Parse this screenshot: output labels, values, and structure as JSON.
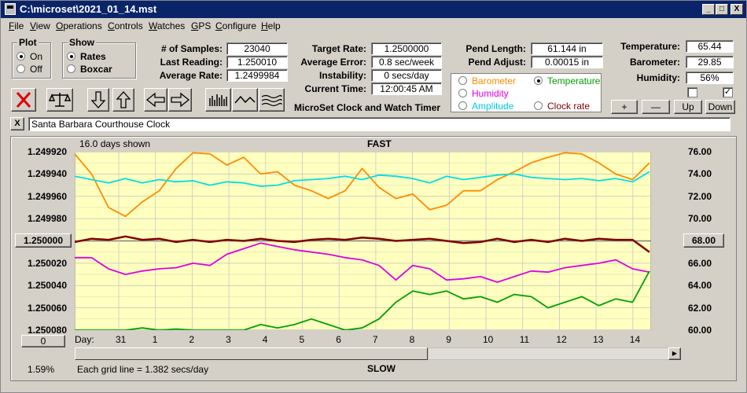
{
  "window": {
    "title": "C:\\microset\\2021_01_14.mst",
    "controls": [
      "_",
      "□",
      "X"
    ]
  },
  "menu": [
    "File",
    "View",
    "Operations",
    "Controls",
    "Watches",
    "GPS",
    "Configure",
    "Help"
  ],
  "plot_group": {
    "title": "Plot",
    "on_label": "On",
    "off_label": "Off",
    "selected": "On"
  },
  "show_group": {
    "title": "Show",
    "rates_label": "Rates",
    "boxcar_label": "Boxcar",
    "selected": "Rates"
  },
  "stats": {
    "samples_label": "# of Samples:",
    "samples": "23040",
    "last_label": "Last Reading:",
    "last": "1.250010",
    "avg_rate_label": "Average Rate:",
    "avg_rate": "1.2499984",
    "target_label": "Target Rate:",
    "target": "1.2500000",
    "avg_err_label": "Average Error:",
    "avg_err": "0.8 sec/week",
    "instab_label": "Instability:",
    "instab": "0 secs/day",
    "time_label": "Current Time:",
    "time": "12:00:45 AM",
    "pend_len_label": "Pend Length:",
    "pend_len": "61.144 in",
    "pend_adj_label": "Pend Adjust:",
    "pend_adj": "0.00015 in",
    "temp_label": "Temperature:",
    "temp": "65.44",
    "baro_label": "Barometer:",
    "baro": "29.85",
    "hum_label": "Humidity:",
    "hum": "56%"
  },
  "app_name": "MicroSet Clock and Watch Timer",
  "series_select": {
    "barometer": "Barometer",
    "temperature": "Temperature",
    "humidity": "Humidity",
    "amplitude": "Amplitude",
    "clock_rate": "Clock rate",
    "selected": "Temperature"
  },
  "adjust_buttons": {
    "plus": "+",
    "minus": "—",
    "up": "Up",
    "down": "Down"
  },
  "clock_name": "Santa Barbara Courthouse Clock",
  "close_x": "X",
  "plot": {
    "days_shown": "16.0 days shown",
    "fast": "FAST",
    "slow": "SLOW",
    "day_label": "Day:",
    "grid_note": "Each grid line = 1.382 secs/day",
    "percent": "1.59%",
    "zero_btn": "0",
    "center_left": "1.250000",
    "center_right": "68.00"
  },
  "colors": {
    "barometer": "#ff8c00",
    "temperature": "#00a000",
    "humidity": "#e000e0",
    "amplitude": "#00e0e0",
    "clock_rate": "#800000",
    "plot_bg": "#ffffc0"
  },
  "chart_data": {
    "type": "line",
    "x_label": "Day:",
    "x_ticks": [
      "31",
      "1",
      "2",
      "3",
      "4",
      "5",
      "6",
      "7",
      "8",
      "9",
      "10",
      "11",
      "12",
      "13",
      "14"
    ],
    "x_range": [
      0,
      16
    ],
    "left_ticks": [
      "1.249920",
      "1.249940",
      "1.249960",
      "1.249980",
      "1.250000",
      "1.250020",
      "1.250040",
      "1.250060",
      "1.250080"
    ],
    "left_range_rev": [
      1.24992,
      1.25008
    ],
    "right_ticks": [
      "76.00",
      "74.00",
      "72.00",
      "70.00",
      "68.00",
      "66.00",
      "64.00",
      "62.00",
      "60.00"
    ],
    "right_range": [
      60,
      76
    ],
    "grid": true,
    "series": [
      {
        "name": "Barometer",
        "color_key": "barometer",
        "scale": "right",
        "values": [
          75.8,
          74.0,
          71.0,
          70.2,
          71.5,
          72.5,
          74.5,
          75.9,
          75.8,
          74.8,
          75.5,
          74.0,
          74.2,
          73.0,
          72.5,
          71.8,
          72.5,
          74.5,
          72.8,
          71.8,
          72.2,
          70.8,
          71.2,
          72.5,
          72.5,
          73.5,
          74.2,
          75.0,
          75.5,
          75.9,
          75.8,
          75.0,
          74.0,
          73.5,
          75.0
        ]
      },
      {
        "name": "Amplitude",
        "color_key": "amplitude",
        "scale": "right",
        "values": [
          73.8,
          73.5,
          73.2,
          73.6,
          73.2,
          73.5,
          73.3,
          73.4,
          73.0,
          73.3,
          73.2,
          72.9,
          73.0,
          73.4,
          73.5,
          73.6,
          73.8,
          73.5,
          73.9,
          73.8,
          73.6,
          73.2,
          73.8,
          73.5,
          73.7,
          73.9,
          74.0,
          73.7,
          73.6,
          73.5,
          73.6,
          73.4,
          73.6,
          73.3,
          74.2
        ]
      },
      {
        "name": "Clock rate",
        "color_key": "clock_rate",
        "scale": "left",
        "values": [
          1.250001,
          1.249998,
          1.249999,
          1.249996,
          1.249999,
          1.249998,
          1.250001,
          1.249999,
          1.250001,
          1.249999,
          1.25,
          1.249998,
          1.25,
          1.250001,
          1.249999,
          1.249998,
          1.249999,
          1.249997,
          1.249998,
          1.25,
          1.249999,
          1.249998,
          1.25,
          1.250002,
          1.250001,
          1.249998,
          1.250001,
          1.249999,
          1.250001,
          1.249998,
          1.25,
          1.249998,
          1.249999,
          1.249999,
          1.25001
        ]
      },
      {
        "name": "Humidity",
        "color_key": "humidity",
        "scale": "right",
        "values": [
          66.5,
          66.5,
          65.5,
          65.0,
          65.3,
          65.5,
          65.6,
          66.0,
          65.8,
          66.8,
          67.3,
          67.8,
          67.5,
          67.2,
          67.0,
          66.8,
          66.5,
          66.3,
          65.8,
          64.5,
          65.8,
          65.5,
          64.5,
          64.6,
          64.8,
          64.3,
          64.8,
          65.3,
          65.2,
          65.6,
          65.8,
          66.0,
          66.3,
          65.5,
          65.2
        ]
      },
      {
        "name": "Temperature",
        "color_key": "temperature",
        "scale": "right",
        "values": [
          60.0,
          59.8,
          59.9,
          60.0,
          60.2,
          60.0,
          60.1,
          60.0,
          59.9,
          60.0,
          59.8,
          60.5,
          60.2,
          60.5,
          61.0,
          60.5,
          59.8,
          60.2,
          61.0,
          62.5,
          63.5,
          63.2,
          63.5,
          62.8,
          63.0,
          62.5,
          63.2,
          63.0,
          62.0,
          62.5,
          63.0,
          62.2,
          62.8,
          62.5,
          65.3
        ]
      }
    ]
  }
}
